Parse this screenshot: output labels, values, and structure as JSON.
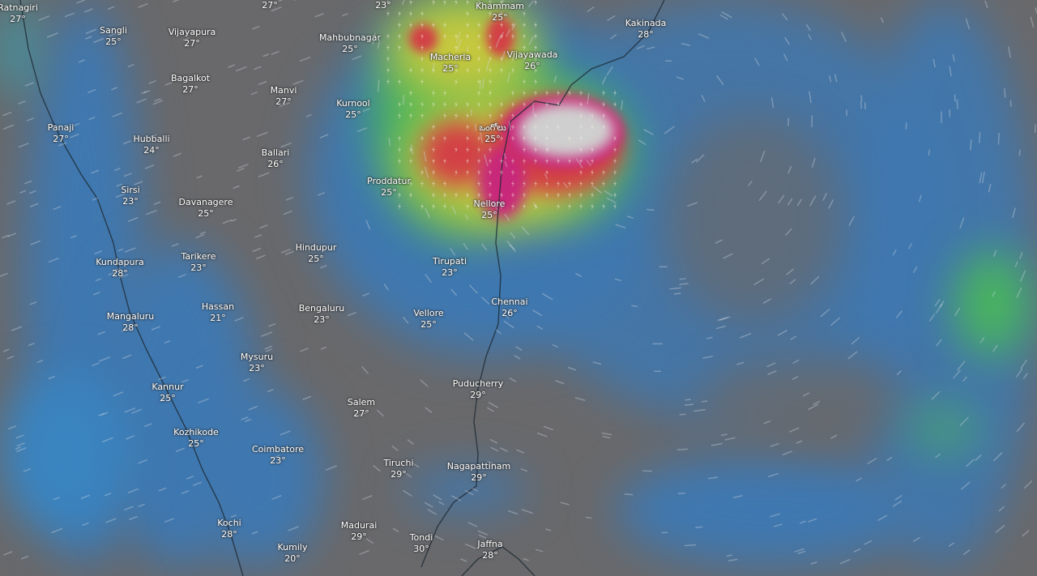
{
  "map": {
    "layer": "precipitation / thunderstorms",
    "colors": {
      "land": "#69696b",
      "sea_rain": "#3f78b0",
      "green": "#49b85a",
      "yellow": "#c9c83e",
      "red": "#d24046",
      "magenta": "#c8287a",
      "extreme": "#cfcfcf",
      "coastline": "#1e2a35"
    },
    "icons": [
      "lightning-icon",
      "wind-streak"
    ],
    "labels": [
      {
        "name": "Ratnagiri",
        "temp": "27°"
      },
      {
        "name": "Sangli",
        "temp": "25°"
      },
      {
        "name": "Vijayapura",
        "temp": "27°"
      },
      {
        "name": "Bagalkot",
        "temp": "27°"
      },
      {
        "name": "Manvi",
        "temp": "27°"
      },
      {
        "name": "Panaji",
        "temp": "27°"
      },
      {
        "name": "Hubballi",
        "temp": "24°"
      },
      {
        "name": "Ballari",
        "temp": "26°"
      },
      {
        "name": "Sirsi",
        "temp": "23°"
      },
      {
        "name": "Davanagere",
        "temp": "25°"
      },
      {
        "name": "Tarikere",
        "temp": "23°"
      },
      {
        "name": "Kundapura",
        "temp": "28°"
      },
      {
        "name": "Mahbubnagar",
        "temp": "25°"
      },
      {
        "name": "Kurnool",
        "temp": "25°"
      },
      {
        "name": "Macherla",
        "temp": "25°"
      },
      {
        "name": "Vijayawada",
        "temp": "26°"
      },
      {
        "name": "Khammam",
        "temp": "25°"
      },
      {
        "name": "Kakinada",
        "temp": "28°"
      },
      {
        "name": "ఒంగోలు",
        "temp": "25°"
      },
      {
        "name": "Proddatur",
        "temp": "25°"
      },
      {
        "name": "Nellore",
        "temp": "25°"
      },
      {
        "name": "Hindupur",
        "temp": "25°"
      },
      {
        "name": "Tirupati",
        "temp": "23°"
      },
      {
        "name": "Chennai",
        "temp": "26°"
      },
      {
        "name": "Vellore",
        "temp": "25°"
      },
      {
        "name": "Bengaluru",
        "temp": "23°"
      },
      {
        "name": "Hassan",
        "temp": "21°"
      },
      {
        "name": "Mangaluru",
        "temp": "28°"
      },
      {
        "name": "Mysuru",
        "temp": "23°"
      },
      {
        "name": "Kannur",
        "temp": "25°"
      },
      {
        "name": "Puducherry",
        "temp": "29°"
      },
      {
        "name": "Salem",
        "temp": "27°"
      },
      {
        "name": "Kozhikode",
        "temp": "25°"
      },
      {
        "name": "Coimbatore",
        "temp": "23°"
      },
      {
        "name": "Tiruchi",
        "temp": "29°"
      },
      {
        "name": "Nagapattinam",
        "temp": "29°"
      },
      {
        "name": "Kochi",
        "temp": "28°"
      },
      {
        "name": "Madurai",
        "temp": "29°"
      },
      {
        "name": "Tondi",
        "temp": "30°"
      },
      {
        "name": "Jaffna",
        "temp": "28°"
      },
      {
        "name": "Kumily",
        "temp": "20°"
      }
    ],
    "partial_labels": [
      {
        "temp": "27°"
      },
      {
        "temp": "23°"
      }
    ]
  }
}
